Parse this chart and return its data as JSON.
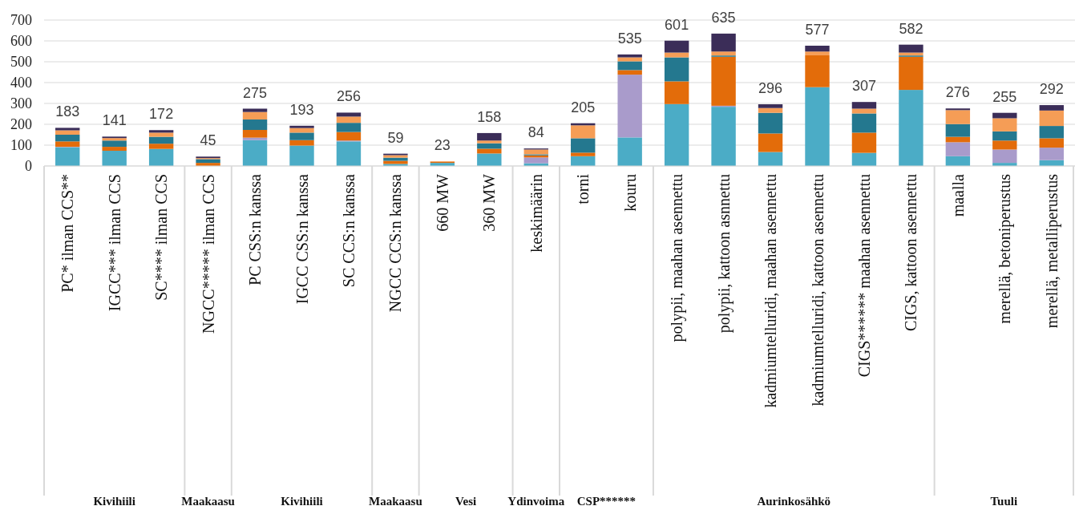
{
  "chart_data": {
    "type": "bar",
    "stacked": true,
    "categories": [
      "PC* ilman CCS**",
      "IGCC*** ilman CCS",
      "SC**** ilman CCS",
      "NGCC***** ilman CCS",
      "PC CSS:n kanssa",
      "IGCC CSS:n kanssa",
      "SC CCS:n kanssa",
      "NGCC CCS:n kanssa",
      "660 MW",
      "360 MW",
      "keskimäärin",
      "torni",
      "kouru",
      "polypii, maahan asennettu",
      "polypii, kattoon asnnettu",
      "kadmiumtelluridi, maahan asennettu",
      "kadmiumtelluridi, kattoon asennettu",
      "CIGS****** maahan asennettu",
      "CIGS, kattoon asennettu",
      "maalla",
      "merellä, betoniperustus",
      "merellä, metalliperustus"
    ],
    "series": [
      {
        "color": "#4bacc6",
        "values": [
          90,
          73,
          82,
          null,
          124,
          98,
          118,
          10,
          15,
          60,
          13,
          47,
          137,
          297,
          284,
          67,
          378,
          63,
          365,
          47,
          15,
          28
        ]
      },
      {
        "color": "#a99bcb",
        "values": [
          2,
          0,
          0,
          0,
          12,
          0,
          4,
          0,
          0,
          0,
          28,
          0,
          301,
          0,
          5,
          0,
          0,
          0,
          0,
          67,
          64,
          60
        ]
      },
      {
        "color": "#e36c0a",
        "values": [
          26,
          19,
          25,
          15,
          37,
          26,
          41,
          15,
          5,
          23,
          10,
          17,
          22,
          109,
          235,
          89,
          153,
          97,
          159,
          26,
          43,
          45
        ]
      },
      {
        "color": "#24788f",
        "values": [
          32,
          30,
          33,
          18,
          50,
          36,
          44,
          15,
          0,
          26,
          5,
          69,
          42,
          115,
          6,
          99,
          0,
          92,
          6,
          61,
          44,
          59
        ]
      },
      {
        "color": "#f59d56",
        "values": [
          21,
          12,
          20,
          5,
          36,
          22,
          30,
          12,
          3,
          13,
          23,
          62,
          19,
          23,
          19,
          23,
          18,
          23,
          14,
          67,
          63,
          74
        ]
      },
      {
        "color": "#3b2d58",
        "values": [
          12,
          7,
          12,
          7,
          16,
          11,
          19,
          7,
          0,
          36,
          5,
          10,
          14,
          57,
          86,
          18,
          28,
          32,
          38,
          8,
          26,
          26
        ]
      }
    ],
    "totals": [
      "183",
      "141",
      "172",
      "45",
      "275",
      "193",
      "256",
      "59",
      "23",
      "158",
      "84",
      "205",
      "535",
      "601",
      "635",
      "296",
      "577",
      "307",
      "582",
      "276",
      "255",
      "292"
    ],
    "ylim": [
      0,
      700
    ],
    "yticks": [
      0,
      100,
      200,
      300,
      400,
      500,
      600,
      700
    ],
    "grid": "y",
    "annotations": [
      "Kivihiili",
      "Maakaasu",
      "Kivihiili",
      "Maakaasu",
      "Vesi",
      "Ydinvoima",
      "CSP******",
      "Aurinkosähkö",
      "Tuuli"
    ]
  }
}
